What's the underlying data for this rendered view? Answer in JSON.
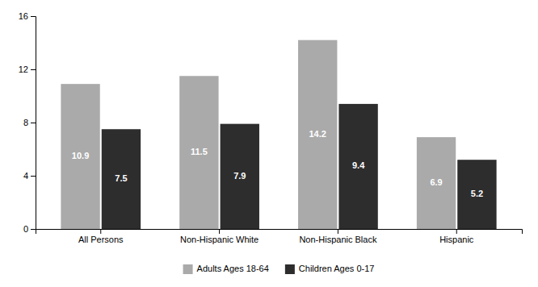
{
  "chart_data": {
    "type": "bar",
    "categories": [
      "All Persons",
      "Non-Hispanic White",
      "Non-Hispanic Black",
      "Hispanic"
    ],
    "series": [
      {
        "name": "Adults Ages 18-64",
        "color": "#aaaaaa",
        "values": [
          10.9,
          11.5,
          14.2,
          6.9
        ]
      },
      {
        "name": "Children Ages 0-17",
        "color": "#2d2d2d",
        "values": [
          7.5,
          7.9,
          9.4,
          5.2
        ]
      }
    ],
    "ylim": [
      0,
      16
    ],
    "yticks": [
      0,
      4,
      8,
      12,
      16
    ],
    "grid": false,
    "legend": "bottom",
    "data_labels": true
  }
}
